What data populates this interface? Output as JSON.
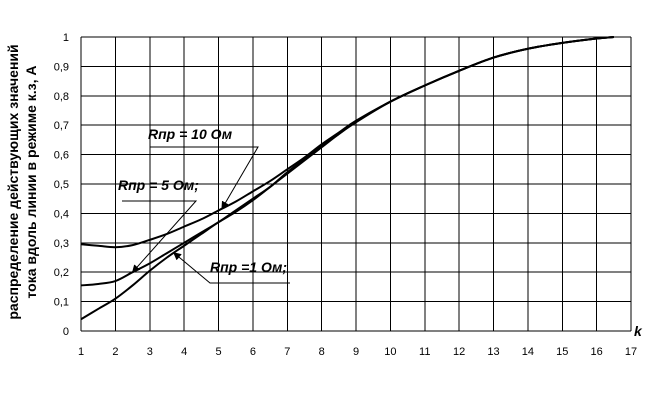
{
  "chart_data": {
    "type": "line",
    "xlabel": "k",
    "ylabel_lines": [
      "распределение  действующих значений",
      "тока вдоль линии в  режиме  к.з, А"
    ],
    "xlim": [
      1,
      17
    ],
    "ylim": [
      0,
      1
    ],
    "x_ticks": [
      "1",
      "2",
      "3",
      "4",
      "5",
      "6",
      "7",
      "8",
      "9",
      "10",
      "11",
      "12",
      "13",
      "14",
      "15",
      "16",
      "17"
    ],
    "y_ticks": [
      "0",
      "0,1",
      "0,2",
      "0,3",
      "0,4",
      "0,5",
      "0,6",
      "0,7",
      "0,8",
      "0,9",
      "1"
    ],
    "grid": true,
    "series": [
      {
        "name": "Rпр = 10 Ом",
        "x": [
          1,
          1.5,
          2,
          2.5,
          3,
          3.5,
          4,
          4.5,
          5,
          5.5,
          6,
          6.5,
          7,
          7.5,
          8,
          8.5,
          9,
          10,
          11,
          12,
          13,
          14,
          15,
          16,
          16.5
        ],
        "y": [
          0.295,
          0.29,
          0.285,
          0.292,
          0.31,
          0.33,
          0.355,
          0.38,
          0.41,
          0.44,
          0.475,
          0.51,
          0.55,
          0.59,
          0.635,
          0.675,
          0.715,
          0.78,
          0.835,
          0.885,
          0.93,
          0.96,
          0.98,
          0.995,
          1.0
        ]
      },
      {
        "name": "Rпр = 5 Ом",
        "x": [
          1,
          1.5,
          2,
          2.5,
          3,
          3.5,
          4,
          4.5,
          5,
          5.5,
          6,
          6.5,
          7,
          7.5,
          8,
          8.5,
          9,
          10,
          11,
          12,
          13,
          14,
          15,
          16,
          16.5
        ],
        "y": [
          0.155,
          0.16,
          0.17,
          0.2,
          0.23,
          0.265,
          0.3,
          0.335,
          0.37,
          0.41,
          0.45,
          0.49,
          0.54,
          0.585,
          0.63,
          0.67,
          0.712,
          0.78,
          0.835,
          0.885,
          0.93,
          0.96,
          0.98,
          0.995,
          1.0
        ]
      },
      {
        "name": "Rпр =1 Ом",
        "x": [
          1,
          1.5,
          2,
          2.5,
          3,
          3.5,
          4,
          4.5,
          5,
          5.5,
          6,
          6.5,
          7,
          7.5,
          8,
          8.5,
          9,
          10,
          11,
          12,
          13,
          14,
          15,
          16,
          16.5
        ],
        "y": [
          0.04,
          0.075,
          0.11,
          0.155,
          0.205,
          0.25,
          0.29,
          0.33,
          0.37,
          0.405,
          0.445,
          0.49,
          0.535,
          0.58,
          0.625,
          0.67,
          0.71,
          0.78,
          0.835,
          0.885,
          0.93,
          0.96,
          0.98,
          0.995,
          1.0
        ]
      }
    ],
    "annotations": [
      {
        "text": "Rпр = 10 Ом",
        "series": 0,
        "points_to_x": 5.1
      },
      {
        "text": "Rпр  =  5 Ом;",
        "series": 1,
        "points_to_x": 2.5
      },
      {
        "text": "Rпр =1 Ом;",
        "series": 2,
        "points_to_x": 3.7
      }
    ]
  }
}
